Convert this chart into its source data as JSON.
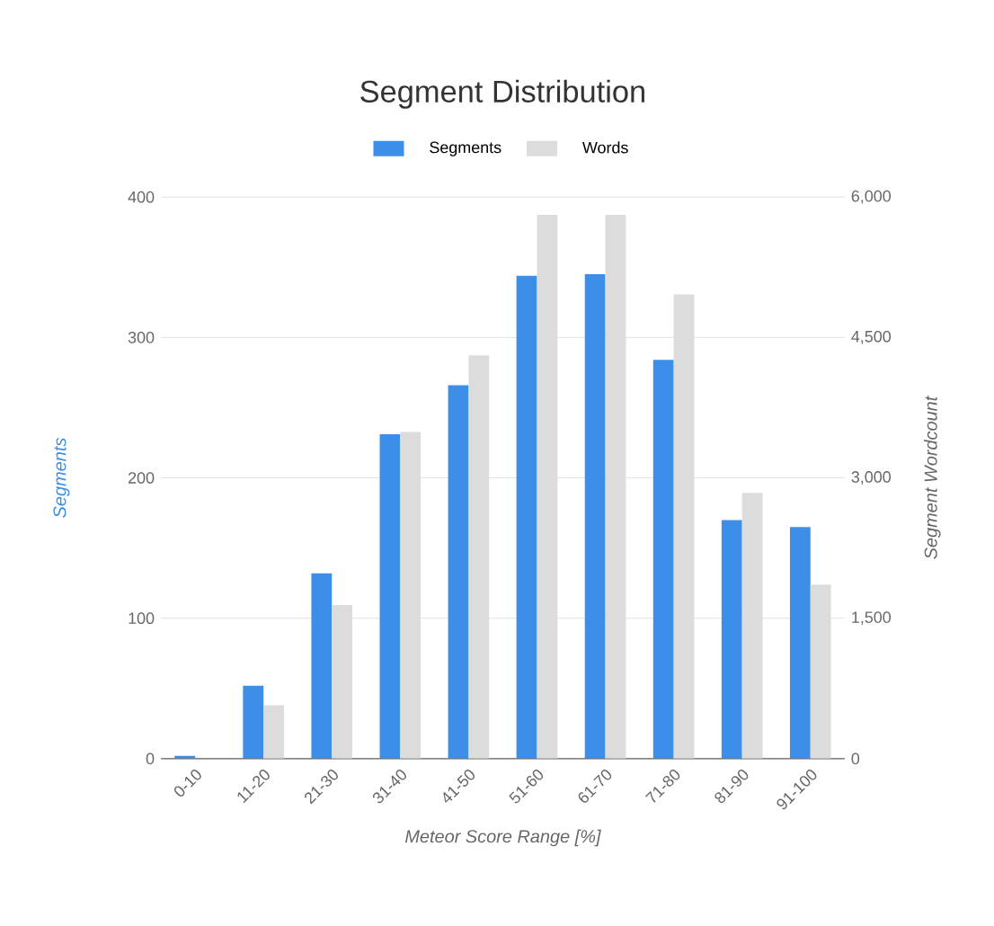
{
  "chart_data": {
    "type": "bar",
    "title": "Segment Distribution",
    "xlabel": "Meteor Score Range [%]",
    "ylabel": "Segments",
    "y2label": "Segment Wordcount",
    "categories": [
      "0-10",
      "11-20",
      "21-30",
      "31-40",
      "41-50",
      "51-60",
      "61-70",
      "71-80",
      "81-90",
      "91-100"
    ],
    "series": [
      {
        "name": "Segments",
        "color": "#3d8ee8",
        "values": [
          2,
          52,
          132,
          231,
          266,
          344,
          345,
          284,
          170,
          165
        ]
      },
      {
        "name": "Words",
        "color": "#dcdcdc",
        "axis": "y2",
        "values": [
          0,
          570,
          1640,
          3490,
          4310,
          5810,
          5810,
          4960,
          2840,
          1860
        ]
      }
    ],
    "ylim": [
      0,
      400
    ],
    "yticks": [
      0,
      100,
      200,
      300,
      400
    ],
    "y2lim": [
      0,
      6000
    ],
    "y2ticks": [
      0,
      {
        "value": 1500,
        "label": "1,500"
      },
      {
        "value": 3000,
        "label": "3,000"
      },
      {
        "value": 4500,
        "label": "4,500"
      },
      {
        "value": 6000,
        "label": "6,000"
      }
    ],
    "grid": "y",
    "legend": "top"
  }
}
